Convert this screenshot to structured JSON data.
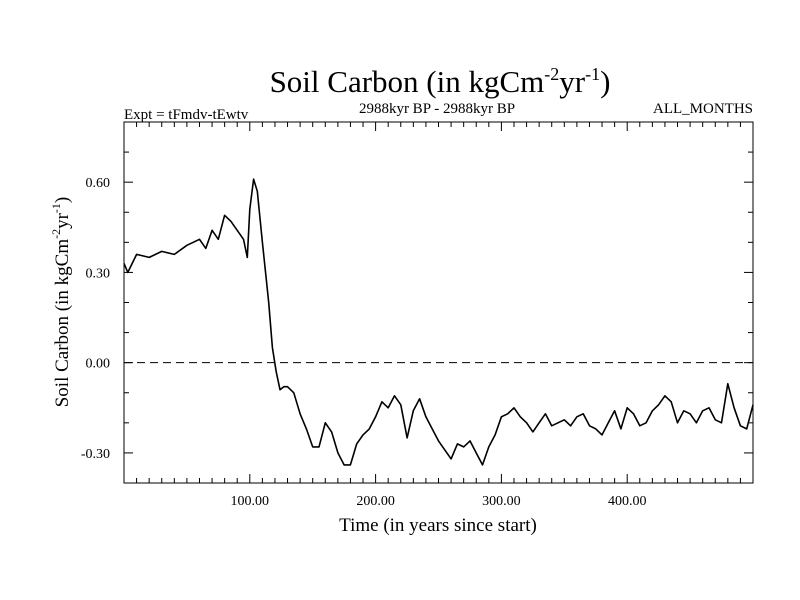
{
  "chart_data": {
    "type": "line",
    "title": {
      "base": "Soil Carbon (in kgCm",
      "exp1": "-2",
      "mid": "yr",
      "exp2": "-1",
      "end": ")"
    },
    "ylabel": {
      "base": "Soil Carbon (in kgCm",
      "exp1": "-2",
      "mid": "yr",
      "exp2": "-1",
      "end": ")"
    },
    "subtitle_left": "Expt = tFmdv-tEwtv",
    "subtitle_center": "2988kyr BP - 2988kyr BP",
    "subtitle_right": "ALL_MONTHS",
    "xlabel": "Time (in years since start)",
    "xlim": [
      0,
      500
    ],
    "ylim": [
      -0.4,
      0.8
    ],
    "x_ticks": [
      100,
      200,
      300,
      400
    ],
    "x_tick_labels": [
      "100.00",
      "200.00",
      "300.00",
      "400.00"
    ],
    "y_ticks": [
      -0.3,
      0.0,
      0.3,
      0.6
    ],
    "y_tick_labels": [
      "-0.30",
      "0.00",
      "0.30",
      "0.60"
    ],
    "zero_line": 0,
    "series": [
      {
        "name": "Soil Carbon",
        "x": [
          0,
          3,
          10,
          20,
          30,
          40,
          50,
          60,
          65,
          70,
          75,
          80,
          85,
          90,
          95,
          98,
          100,
          103,
          106,
          110,
          115,
          118,
          121,
          124,
          127,
          130,
          135,
          140,
          145,
          150,
          155,
          160,
          165,
          170,
          175,
          180,
          185,
          190,
          195,
          200,
          205,
          210,
          215,
          220,
          225,
          230,
          235,
          240,
          245,
          250,
          255,
          260,
          265,
          270,
          275,
          280,
          285,
          290,
          295,
          300,
          305,
          310,
          315,
          320,
          325,
          330,
          335,
          340,
          345,
          350,
          355,
          360,
          365,
          370,
          375,
          380,
          385,
          390,
          395,
          400,
          405,
          410,
          415,
          420,
          425,
          430,
          435,
          440,
          445,
          450,
          455,
          460,
          465,
          470,
          475,
          480,
          485,
          490,
          495,
          500
        ],
        "y": [
          0.33,
          0.3,
          0.36,
          0.35,
          0.37,
          0.36,
          0.39,
          0.41,
          0.38,
          0.44,
          0.41,
          0.49,
          0.47,
          0.44,
          0.41,
          0.35,
          0.51,
          0.61,
          0.57,
          0.4,
          0.2,
          0.05,
          -0.03,
          -0.09,
          -0.08,
          -0.08,
          -0.1,
          -0.17,
          -0.22,
          -0.28,
          -0.28,
          -0.2,
          -0.23,
          -0.3,
          -0.34,
          -0.34,
          -0.27,
          -0.24,
          -0.22,
          -0.18,
          -0.13,
          -0.15,
          -0.11,
          -0.14,
          -0.25,
          -0.16,
          -0.12,
          -0.18,
          -0.22,
          -0.26,
          -0.29,
          -0.32,
          -0.27,
          -0.28,
          -0.26,
          -0.3,
          -0.34,
          -0.28,
          -0.24,
          -0.18,
          -0.17,
          -0.15,
          -0.18,
          -0.2,
          -0.23,
          -0.2,
          -0.17,
          -0.21,
          -0.2,
          -0.19,
          -0.21,
          -0.18,
          -0.17,
          -0.21,
          -0.22,
          -0.24,
          -0.2,
          -0.16,
          -0.22,
          -0.15,
          -0.17,
          -0.21,
          -0.2,
          -0.16,
          -0.14,
          -0.11,
          -0.13,
          -0.2,
          -0.16,
          -0.17,
          -0.2,
          -0.16,
          -0.15,
          -0.19,
          -0.2,
          -0.07,
          -0.15,
          -0.21,
          -0.22,
          -0.14
        ]
      }
    ]
  }
}
